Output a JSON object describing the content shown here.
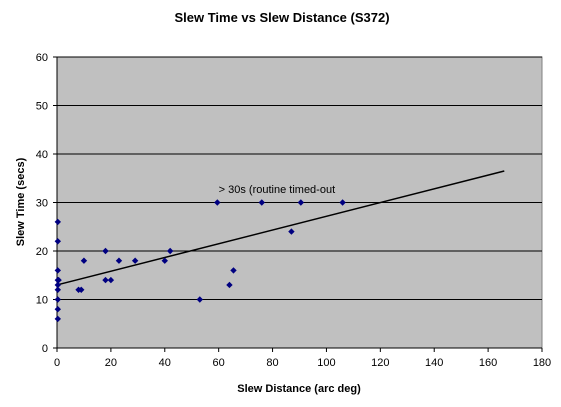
{
  "chart_data": {
    "type": "scatter",
    "title": "Slew Time vs Slew Distance (S372)",
    "xlabel": "Slew Distance (arc deg)",
    "ylabel": "Slew Time (secs)",
    "xlim": [
      0,
      180
    ],
    "ylim": [
      0,
      60
    ],
    "xticks": [
      0,
      20,
      40,
      60,
      80,
      100,
      120,
      140,
      160,
      180
    ],
    "yticks": [
      0,
      10,
      20,
      30,
      40,
      50,
      60
    ],
    "grid": true,
    "legend": "none",
    "plot_background": "#C0C0C0",
    "marker_color": "#000080",
    "points": [
      {
        "x": 0.3,
        "y": 26
      },
      {
        "x": 0.3,
        "y": 22
      },
      {
        "x": 0.3,
        "y": 16
      },
      {
        "x": 0.3,
        "y": 14
      },
      {
        "x": 0.3,
        "y": 13
      },
      {
        "x": 0.3,
        "y": 12
      },
      {
        "x": 0.3,
        "y": 10
      },
      {
        "x": 0.3,
        "y": 8
      },
      {
        "x": 0.3,
        "y": 6
      },
      {
        "x": 0.6,
        "y": 14
      },
      {
        "x": 8,
        "y": 12
      },
      {
        "x": 9,
        "y": 12
      },
      {
        "x": 10,
        "y": 18
      },
      {
        "x": 18,
        "y": 20
      },
      {
        "x": 18,
        "y": 14
      },
      {
        "x": 20,
        "y": 14
      },
      {
        "x": 23,
        "y": 18
      },
      {
        "x": 29,
        "y": 18
      },
      {
        "x": 40,
        "y": 18
      },
      {
        "x": 42,
        "y": 20
      },
      {
        "x": 53,
        "y": 10
      },
      {
        "x": 59.5,
        "y": 30
      },
      {
        "x": 64,
        "y": 13
      },
      {
        "x": 65.5,
        "y": 16
      },
      {
        "x": 76,
        "y": 30
      },
      {
        "x": 87,
        "y": 24
      },
      {
        "x": 90.5,
        "y": 30
      },
      {
        "x": 106,
        "y": 30
      }
    ],
    "trendline": {
      "x": [
        0,
        166
      ],
      "y": [
        13,
        36.5
      ]
    },
    "annotation": {
      "text": "> 30s (routine timed-out",
      "x": 60,
      "y": 32
    }
  }
}
